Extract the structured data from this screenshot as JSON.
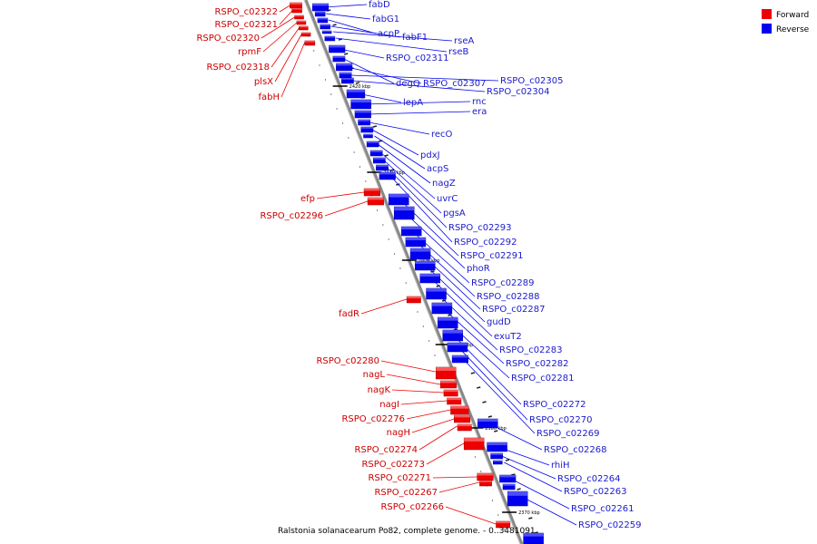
{
  "caption": "Ralstonia solanacearum Po82, complete genome. - 0..3481091",
  "legend": [
    {
      "label": "Forward",
      "color": "#ee0000"
    },
    {
      "label": "Reverse",
      "color": "#0000ee"
    }
  ],
  "ticks": [
    "2420 kbp",
    "2410 kbp",
    "2400 kbp",
    "2390 kbp",
    "2380 kbp",
    "2370 kbp"
  ],
  "forward_labels": [
    "RSPO_c02322",
    "RSPO_c02321",
    "RSPO_c02320",
    "rpmF",
    "RSPO_c02318",
    "plsX",
    "fabH",
    "efp",
    "RSPO_c02296",
    "fadR",
    "RSPO_c02280",
    "nagL",
    "nagK",
    "nagI",
    "RSPO_c02276",
    "nagH",
    "RSPO_c02274",
    "RSPO_c02273",
    "RSPO_c02271",
    "RSPO_c02267",
    "RSPO_c02266"
  ],
  "reverse_labels": [
    "fabD",
    "fabG1",
    "acpP",
    "fabF1",
    "rseA",
    "rseB",
    "RSPO_c02311",
    "degQ",
    "RSPO_c02307",
    "RSPO_c02305",
    "RSPO_c02304",
    "lepA",
    "rnc",
    "era",
    "recO",
    "pdxJ",
    "acpS",
    "nagZ",
    "uvrC",
    "pgsA",
    "RSPO_c02293",
    "RSPO_c02292",
    "RSPO_c02291",
    "phoR",
    "RSPO_c02289",
    "RSPO_c02288",
    "RSPO_c02287",
    "gudD",
    "exuT2",
    "RSPO_c02283",
    "RSPO_c02282",
    "RSPO_c02281",
    "RSPO_c02272",
    "RSPO_c02270",
    "RSPO_c02269",
    "RSPO_c02268",
    "rhiH",
    "RSPO_c02264",
    "RSPO_c02263",
    "RSPO_c02261",
    "RSPO_c02259"
  ]
}
